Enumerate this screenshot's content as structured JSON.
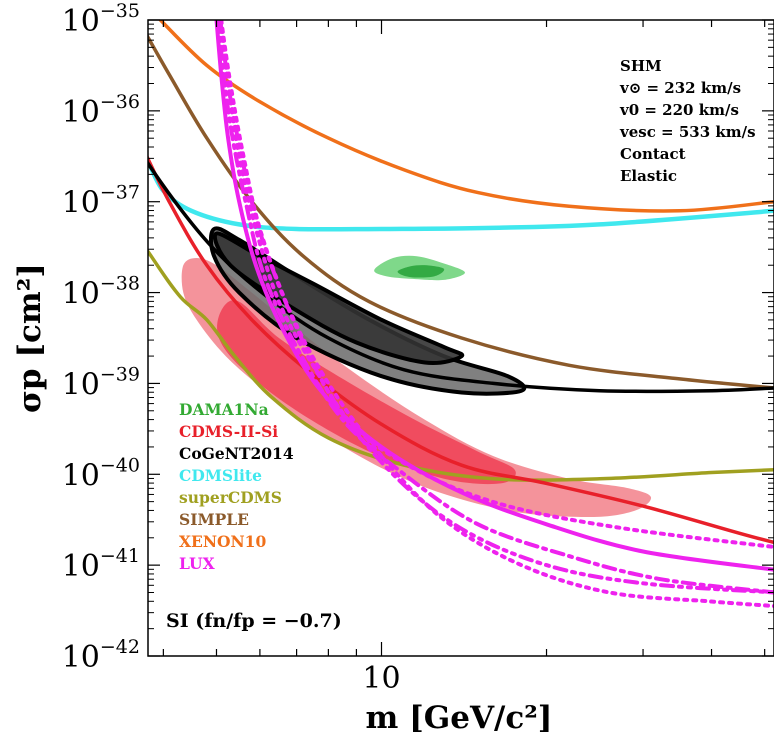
{
  "chart_data": {
    "type": "line",
    "xlabel": "m [GeV/c²]",
    "ylabel": "σp [cm²]",
    "x_scale": "log",
    "y_scale": "log",
    "xlim": [
      3.75,
      52
    ],
    "ylim": [
      1e-42,
      1e-35
    ],
    "x_ticks": [
      {
        "value": 10,
        "label": "10"
      }
    ],
    "y_ticks": [
      {
        "value": 1e-35,
        "base": "10",
        "exp": "−35"
      },
      {
        "value": 1e-36,
        "base": "10",
        "exp": "−36"
      },
      {
        "value": 1e-37,
        "base": "10",
        "exp": "−37"
      },
      {
        "value": 1e-38,
        "base": "10",
        "exp": "−38"
      },
      {
        "value": 1e-39,
        "base": "10",
        "exp": "−39"
      },
      {
        "value": 1e-40,
        "base": "10",
        "exp": "−40"
      },
      {
        "value": 1e-41,
        "base": "10",
        "exp": "−41"
      },
      {
        "value": 1e-42,
        "base": "10",
        "exp": "−42"
      }
    ],
    "info_box": [
      "SHM",
      "v⊙ = 232 km/s",
      "v0 = 220 km/s",
      "vesc = 533 km/s",
      "Contact",
      "Elastic"
    ],
    "annotation": "SI (fn/fp = −0.7)",
    "series": [
      {
        "name": "DAMA1Na",
        "color": "#33aa33",
        "kind": "region",
        "outer": [
          [
            9.7,
            -37.75
          ],
          [
            10.5,
            -37.62
          ],
          [
            11.6,
            -37.6
          ],
          [
            13.0,
            -37.68
          ],
          [
            14.2,
            -37.78
          ],
          [
            13.0,
            -37.86
          ],
          [
            11.4,
            -37.85
          ],
          [
            10.2,
            -37.82
          ]
        ],
        "inner": [
          [
            10.7,
            -37.77
          ],
          [
            11.3,
            -37.71
          ],
          [
            12.1,
            -37.7
          ],
          [
            13.0,
            -37.74
          ],
          [
            12.5,
            -37.82
          ],
          [
            11.3,
            -37.83
          ]
        ]
      },
      {
        "name": "CDMS-II-Si",
        "color": "#e8202a",
        "kind": "region+line",
        "outer": [
          [
            4.35,
            -37.7
          ],
          [
            4.6,
            -37.62
          ],
          [
            5.0,
            -37.7
          ],
          [
            5.8,
            -38.0
          ],
          [
            7.0,
            -38.4
          ],
          [
            9.0,
            -38.9
          ],
          [
            12.0,
            -39.4
          ],
          [
            16.0,
            -39.8
          ],
          [
            22.0,
            -40.05
          ],
          [
            28.0,
            -40.15
          ],
          [
            31.0,
            -40.25
          ],
          [
            29.0,
            -40.4
          ],
          [
            24.0,
            -40.47
          ],
          [
            17.0,
            -40.4
          ],
          [
            11.5,
            -40.1
          ],
          [
            8.0,
            -39.6
          ],
          [
            6.2,
            -39.1
          ],
          [
            5.2,
            -38.7
          ],
          [
            4.6,
            -38.3
          ],
          [
            4.35,
            -38.0
          ]
        ],
        "inner": [
          [
            5.1,
            -38.2
          ],
          [
            5.5,
            -38.1
          ],
          [
            6.5,
            -38.5
          ],
          [
            8.5,
            -38.95
          ],
          [
            11.5,
            -39.4
          ],
          [
            15.0,
            -39.75
          ],
          [
            17.5,
            -39.95
          ],
          [
            16.5,
            -40.1
          ],
          [
            13.0,
            -40.05
          ],
          [
            9.5,
            -39.75
          ],
          [
            7.0,
            -39.3
          ],
          [
            5.6,
            -38.85
          ],
          [
            5.05,
            -38.5
          ]
        ],
        "limit": [
          [
            2.9,
            -35.0
          ],
          [
            3.2,
            -35.6
          ],
          [
            3.6,
            -36.3
          ],
          [
            4.1,
            -37.0
          ],
          [
            4.8,
            -37.7
          ],
          [
            5.8,
            -38.3
          ],
          [
            7.3,
            -38.85
          ],
          [
            10.0,
            -39.45
          ],
          [
            14.0,
            -39.9
          ],
          [
            20.0,
            -40.1
          ],
          [
            30.0,
            -40.35
          ],
          [
            45.0,
            -40.65
          ],
          [
            52.0,
            -40.75
          ]
        ]
      },
      {
        "name": "CoGeNT2014",
        "color": "#000000",
        "kind": "region+line",
        "outer": [
          [
            4.95,
            -37.3
          ],
          [
            5.5,
            -37.42
          ],
          [
            7.0,
            -37.82
          ],
          [
            9.5,
            -38.3
          ],
          [
            13.0,
            -38.7
          ],
          [
            17.0,
            -38.92
          ],
          [
            18.0,
            -39.08
          ],
          [
            14.0,
            -39.1
          ],
          [
            10.0,
            -38.92
          ],
          [
            7.0,
            -38.5
          ],
          [
            5.5,
            -38.0
          ],
          [
            4.95,
            -37.6
          ]
        ],
        "inner": [
          [
            5.0,
            -37.35
          ],
          [
            6.0,
            -37.6
          ],
          [
            7.5,
            -37.9
          ],
          [
            10.0,
            -38.3
          ],
          [
            13.0,
            -38.6
          ],
          [
            14.0,
            -38.7
          ],
          [
            12.0,
            -38.77
          ],
          [
            9.0,
            -38.55
          ],
          [
            6.8,
            -38.15
          ],
          [
            5.3,
            -37.7
          ]
        ],
        "limit": [
          [
            2.6,
            -35.0
          ],
          [
            3.0,
            -35.6
          ],
          [
            3.5,
            -36.3
          ],
          [
            4.2,
            -37.0
          ],
          [
            5.0,
            -37.55
          ],
          [
            6.2,
            -38.05
          ],
          [
            8.0,
            -38.5
          ],
          [
            11.0,
            -38.85
          ],
          [
            16.0,
            -39.0
          ],
          [
            25.0,
            -39.08
          ],
          [
            40.0,
            -39.08
          ],
          [
            52.0,
            -39.05
          ]
        ]
      },
      {
        "name": "CDMSlite",
        "color": "#40e8ee",
        "kind": "line",
        "limit": [
          [
            3.75,
            -36.55
          ],
          [
            4.0,
            -36.88
          ],
          [
            4.5,
            -37.1
          ],
          [
            5.5,
            -37.25
          ],
          [
            7.0,
            -37.3
          ],
          [
            10.0,
            -37.3
          ],
          [
            15.0,
            -37.29
          ],
          [
            25.0,
            -37.25
          ],
          [
            52.0,
            -37.1
          ]
        ]
      },
      {
        "name": "superCDMS",
        "color": "#a0a020",
        "kind": "line",
        "limit": [
          [
            2.35,
            -35.0
          ],
          [
            2.7,
            -35.9
          ],
          [
            3.2,
            -36.9
          ],
          [
            3.8,
            -37.6
          ],
          [
            4.3,
            -38.05
          ],
          [
            4.8,
            -38.3
          ],
          [
            5.4,
            -38.7
          ],
          [
            6.3,
            -39.15
          ],
          [
            8.0,
            -39.6
          ],
          [
            11.0,
            -39.9
          ],
          [
            16.0,
            -40.05
          ],
          [
            25.0,
            -40.05
          ],
          [
            40.0,
            -39.98
          ],
          [
            52.0,
            -39.95
          ]
        ]
      },
      {
        "name": "SIMPLE",
        "color": "#8b5a2b",
        "kind": "line",
        "limit": [
          [
            3.6,
            -35.0
          ],
          [
            4.1,
            -35.6
          ],
          [
            4.8,
            -36.3
          ],
          [
            5.8,
            -37.0
          ],
          [
            7.2,
            -37.6
          ],
          [
            9.5,
            -38.1
          ],
          [
            14.0,
            -38.5
          ],
          [
            22.0,
            -38.8
          ],
          [
            35.0,
            -38.95
          ],
          [
            52.0,
            -39.05
          ]
        ]
      },
      {
        "name": "XENON10",
        "color": "#f0701a",
        "kind": "line",
        "limit": [
          [
            3.95,
            -35.0
          ],
          [
            4.8,
            -35.5
          ],
          [
            6.0,
            -35.9
          ],
          [
            8.0,
            -36.3
          ],
          [
            11.0,
            -36.65
          ],
          [
            15.0,
            -36.9
          ],
          [
            22.0,
            -37.05
          ],
          [
            35.0,
            -37.1
          ],
          [
            52.0,
            -37.0
          ]
        ]
      },
      {
        "name": "LUX",
        "color": "#ee22ee",
        "kind": "lines",
        "solid": [
          [
            5.0,
            -35.0
          ],
          [
            5.1,
            -35.6
          ],
          [
            5.25,
            -36.3
          ],
          [
            5.5,
            -37.0
          ],
          [
            5.9,
            -37.7
          ],
          [
            6.6,
            -38.4
          ],
          [
            7.8,
            -39.1
          ],
          [
            10.0,
            -39.7
          ],
          [
            14.0,
            -40.2
          ],
          [
            20.0,
            -40.55
          ],
          [
            30.0,
            -40.85
          ],
          [
            52.0,
            -41.05
          ]
        ],
        "dashdot": [
          [
            5.05,
            -35.0
          ],
          [
            5.15,
            -35.6
          ],
          [
            5.35,
            -36.3
          ],
          [
            5.65,
            -37.0
          ],
          [
            6.1,
            -37.8
          ],
          [
            7.0,
            -38.6
          ],
          [
            8.5,
            -39.4
          ],
          [
            11.0,
            -40.0
          ],
          [
            15.0,
            -40.55
          ],
          [
            22.0,
            -40.9
          ],
          [
            32.0,
            -41.15
          ],
          [
            52.0,
            -41.3
          ]
        ],
        "dotted_a": [
          [
            5.1,
            -35.0
          ],
          [
            5.25,
            -35.7
          ],
          [
            5.5,
            -36.5
          ],
          [
            5.9,
            -37.3
          ],
          [
            6.5,
            -38.1
          ],
          [
            7.5,
            -38.8
          ],
          [
            9.0,
            -39.5
          ],
          [
            12.0,
            -40.0
          ],
          [
            17.0,
            -40.35
          ],
          [
            28.0,
            -40.6
          ],
          [
            52.0,
            -40.8
          ]
        ],
        "dotted_b": [
          [
            5.1,
            -35.0
          ],
          [
            5.3,
            -35.7
          ],
          [
            5.6,
            -36.5
          ],
          [
            6.0,
            -37.3
          ],
          [
            6.8,
            -38.2
          ],
          [
            8.0,
            -39.0
          ],
          [
            10.0,
            -39.8
          ],
          [
            13.0,
            -40.5
          ],
          [
            18.0,
            -41.0
          ],
          [
            26.0,
            -41.3
          ],
          [
            40.0,
            -41.4
          ],
          [
            52.0,
            -41.45
          ]
        ],
        "dashdot_b": [
          [
            5.08,
            -35.0
          ],
          [
            5.28,
            -35.8
          ],
          [
            5.6,
            -36.6
          ],
          [
            6.05,
            -37.4
          ],
          [
            6.9,
            -38.3
          ],
          [
            8.2,
            -39.2
          ],
          [
            10.5,
            -40.0
          ],
          [
            14.0,
            -40.6
          ],
          [
            20.0,
            -41.0
          ],
          [
            30.0,
            -41.2
          ],
          [
            52.0,
            -41.3
          ]
        ]
      }
    ]
  }
}
